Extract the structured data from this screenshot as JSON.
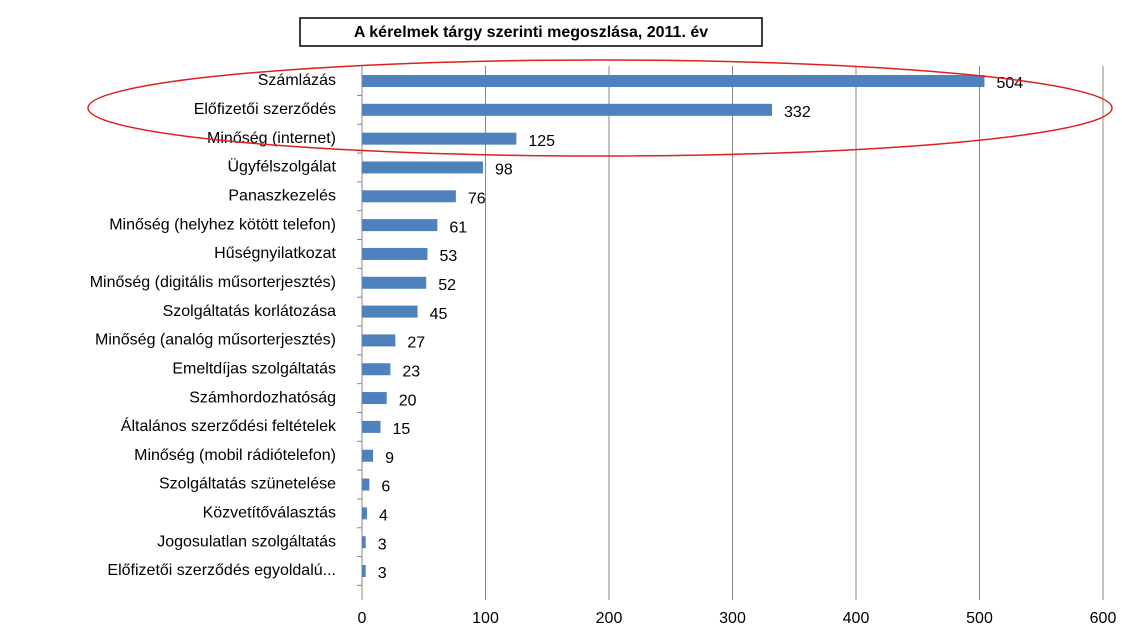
{
  "chart_data": {
    "type": "bar",
    "orientation": "horizontal",
    "title": "A kérelmek tárgy szerinti megoszlása,  2011. év",
    "categories": [
      "Számlázás",
      "Előfizetői szerződés",
      "Minőség (internet)",
      "Ügyfélszolgálat",
      "Panaszkezelés",
      "Minőség (helyhez kötött  telefon)",
      "Hűségnyilatkozat",
      "Minőség (digitális műsorterjesztés)",
      "Szolgáltatás  korlátozása",
      "Minőség (analóg műsorterjesztés)",
      "Emeltdíjas szolgáltatás",
      "Számhordozhatóság",
      "Általános szerződési feltételek",
      "Minőség (mobil rádiótelefon)",
      "Szolgáltatás  szünetelése",
      "Közvetítőválasztás",
      "Jogosulatlan szolgáltatás",
      "Előfizetői szerződés egyoldalú..."
    ],
    "values": [
      504,
      332,
      125,
      98,
      76,
      61,
      53,
      52,
      45,
      27,
      23,
      20,
      15,
      9,
      6,
      4,
      3,
      3
    ],
    "color": "#4f81bd",
    "xlim": [
      0,
      600
    ],
    "xticks": [
      0,
      100,
      200,
      300,
      400,
      500,
      600
    ],
    "grid": true
  }
}
